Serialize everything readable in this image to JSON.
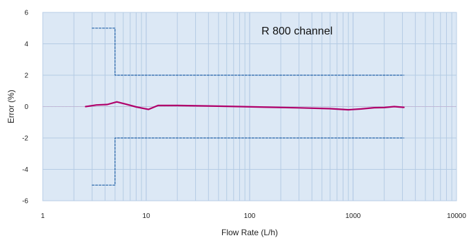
{
  "chart_data": {
    "type": "line",
    "title": "",
    "xlabel": "Flow Rate (L/h)",
    "ylabel": "Error (%)",
    "x_scale": "log",
    "xlim": [
      1,
      10000
    ],
    "ylim": [
      -6,
      6
    ],
    "x_ticks": [
      1,
      10,
      100,
      1000,
      10000
    ],
    "x_tick_labels": [
      "1",
      "10",
      "100",
      "1000",
      "10000"
    ],
    "y_ticks": [
      6,
      4,
      2,
      0,
      -2,
      -4,
      -6
    ],
    "y_tick_labels": [
      "6",
      "4",
      "2",
      "0",
      "-2",
      "-4",
      "-6"
    ],
    "grid": true,
    "annotations": [
      {
        "text": "R 800 channel",
        "x": 130,
        "y": 4.6
      }
    ],
    "series": [
      {
        "style": "solid",
        "color": "#b0006a",
        "x": [
          2.6,
          3.3,
          4.2,
          5.2,
          6.4,
          8,
          10.5,
          13,
          20,
          40,
          80,
          150,
          300,
          600,
          900,
          1200,
          1600,
          2000,
          2500,
          3100
        ],
        "y": [
          0.0,
          0.1,
          0.13,
          0.3,
          0.15,
          -0.02,
          -0.18,
          0.07,
          0.07,
          0.04,
          0.0,
          -0.04,
          -0.08,
          -0.13,
          -0.2,
          -0.15,
          -0.07,
          -0.06,
          0.0,
          -0.05
        ]
      },
      {
        "style": "dashed",
        "color": "#1f5fa6",
        "x": [
          3,
          5,
          5,
          3100
        ],
        "y": [
          5,
          5,
          2,
          2
        ]
      },
      {
        "style": "dashed",
        "color": "#1f5fa6",
        "x": [
          3,
          5,
          5,
          3100
        ],
        "y": [
          -5,
          -5,
          -2,
          -2
        ]
      }
    ]
  }
}
